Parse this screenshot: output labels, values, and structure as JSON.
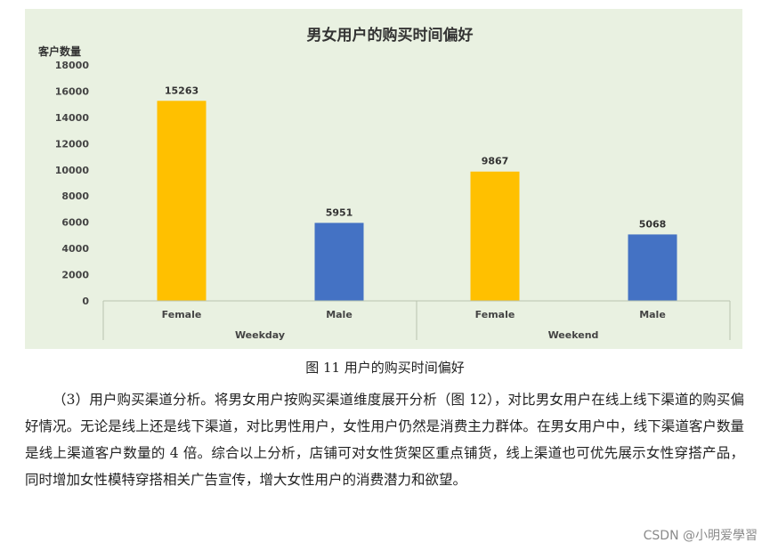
{
  "chart_data": {
    "type": "bar",
    "title": "男女用户的购买时间偏好",
    "ylabel": "客户数量",
    "ylim": [
      0,
      18000
    ],
    "yticks": [
      "18000",
      "16000",
      "14000",
      "12000",
      "10000",
      "8000",
      "6000",
      "4000",
      "2000",
      "0"
    ],
    "groups": [
      {
        "name": "Weekday",
        "bars": [
          {
            "category": "Female",
            "value": 15263,
            "label": "15263",
            "color": "#ffc000"
          },
          {
            "category": "Male",
            "value": 5951,
            "label": "5951",
            "color": "#4472c4"
          }
        ]
      },
      {
        "name": "Weekend",
        "bars": [
          {
            "category": "Female",
            "value": 9867,
            "label": "9867",
            "color": "#ffc000"
          },
          {
            "category": "Male",
            "value": 5068,
            "label": "5068",
            "color": "#4472c4"
          }
        ]
      }
    ],
    "grid": false,
    "background": "#e9f1e1"
  },
  "caption": "图 11 用户的购买时间偏好",
  "paragraph": "（3）用户购买渠道分析。将男女用户按购买渠道维度展开分析（图 12），对比男女用户在线上线下渠道的购买偏好情况。无论是线上还是线下渠道，对比男性用户，女性用户仍然是消费主力群体。在男女用户中，线下渠道客户数量是线上渠道客户数量的 4 倍。综合以上分析，店铺可对女性货架区重点铺货，线上渠道也可优先展示女性穿搭产品，同时增加女性模特穿搭相关广告宣传，增大女性用户的消费潜力和欲望。",
  "watermark": "CSDN @小明爱學習"
}
